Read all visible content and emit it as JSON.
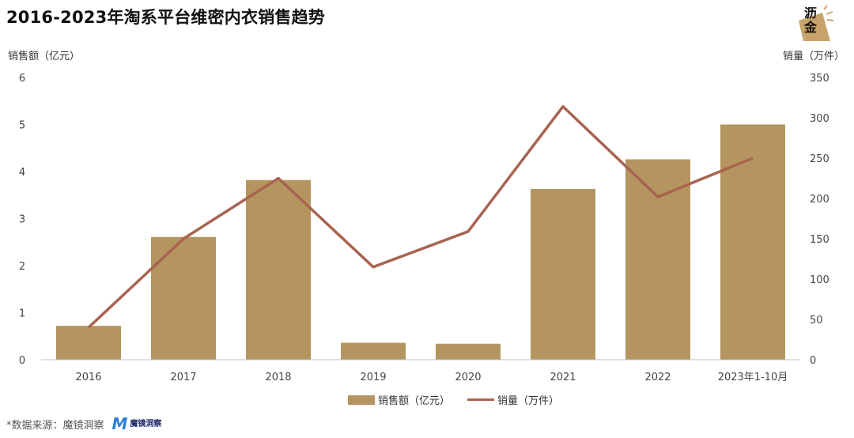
{
  "title": "2016-2023年淘系平台维密内衣销售趋势",
  "logo": {
    "text": "沥金"
  },
  "source_label": "*数据来源：魔镜洞察",
  "brand": {
    "mark": "M",
    "name": "魔镜洞察"
  },
  "colors": {
    "bar": "#b5955f",
    "line": "#a86450",
    "axis": "#bfbfbf"
  },
  "chart_data": {
    "type": "bar",
    "categories": [
      "2016",
      "2017",
      "2018",
      "2019",
      "2020",
      "2021",
      "2022",
      "2023年1-10月"
    ],
    "series": [
      {
        "name": "销售额（亿元）",
        "type": "bar",
        "axis": "left",
        "values": [
          0.72,
          2.61,
          3.82,
          0.36,
          0.34,
          3.63,
          4.26,
          5.0
        ]
      },
      {
        "name": "销量（万件）",
        "type": "line",
        "axis": "right",
        "values": [
          40,
          150,
          225,
          115,
          159,
          314,
          202,
          250
        ]
      }
    ],
    "ylabel": "销售额（亿元）",
    "y2label": "销量（万件）",
    "ylim": [
      0,
      6
    ],
    "y2lim": [
      0,
      350
    ],
    "yticks": [
      "0",
      "1",
      "2",
      "3",
      "4",
      "5",
      "6"
    ],
    "y2ticks": [
      "0",
      "50",
      "100",
      "150",
      "200",
      "250",
      "300",
      "350"
    ],
    "grid": false,
    "legend": "bottom"
  }
}
